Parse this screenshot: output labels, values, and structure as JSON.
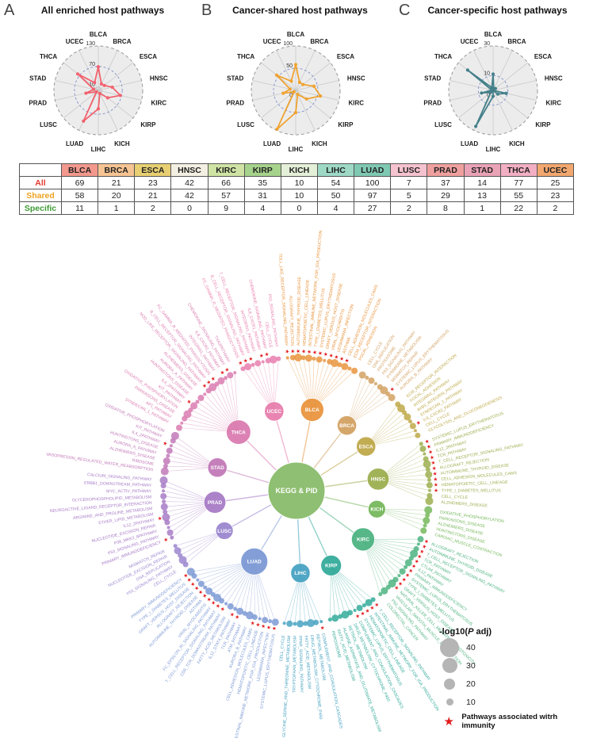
{
  "figure": {
    "panels": [
      {
        "letter": "A",
        "title": "All enriched host pathways",
        "color": "#f2626e",
        "ticks": [
          10,
          70,
          130
        ],
        "max": 130,
        "row": "All"
      },
      {
        "letter": "B",
        "title": "Cancer-shared host pathways",
        "color": "#f0a330",
        "ticks": [
          0,
          50,
          100
        ],
        "max": 100,
        "row": "Shared"
      },
      {
        "letter": "C",
        "title": "Cancer-specific host pathways",
        "color": "#44808a",
        "ticks": [
          0,
          10,
          30
        ],
        "max": 30,
        "row": "Specific"
      }
    ]
  },
  "chart_data": {
    "type": "radar",
    "categories": [
      "BLCA",
      "BRCA",
      "ESCA",
      "HNSC",
      "KIRC",
      "KIRP",
      "KICH",
      "LIHC",
      "LUAD",
      "LUSC",
      "PRAD",
      "STAD",
      "THCA",
      "UCEC"
    ],
    "series": [
      {
        "name": "All",
        "values": [
          69,
          21,
          23,
          42,
          66,
          35,
          10,
          54,
          100,
          7,
          37,
          14,
          77,
          25
        ],
        "ticks": [
          10,
          70,
          130
        ],
        "ylim": [
          0,
          130
        ],
        "color": "#f2626e",
        "title": "All enriched host pathways"
      },
      {
        "name": "Shared",
        "values": [
          58,
          20,
          21,
          42,
          57,
          31,
          10,
          50,
          97,
          5,
          29,
          13,
          55,
          23
        ],
        "ticks": [
          0,
          50,
          100
        ],
        "ylim": [
          0,
          100
        ],
        "color": "#f0a330",
        "title": "Cancer-shared host pathways"
      },
      {
        "name": "Specific",
        "values": [
          11,
          1,
          2,
          0,
          9,
          4,
          0,
          4,
          27,
          2,
          8,
          1,
          22,
          2
        ],
        "ticks": [
          0,
          10,
          30
        ],
        "ylim": [
          0,
          30
        ],
        "color": "#44808a",
        "title": "Cancer-specific host pathways"
      }
    ],
    "legend_position": "none",
    "grid": true
  },
  "table": {
    "columns": [
      "BLCA",
      "BRCA",
      "ESCA",
      "HNSC",
      "KIRC",
      "KIRP",
      "KICH",
      "LIHC",
      "LUAD",
      "LUSC",
      "PRAD",
      "STAD",
      "THCA",
      "UCEC"
    ],
    "header_colors": [
      "#f2988c",
      "#f6c493",
      "#e7cf72",
      "#f3efe2",
      "#cfe3a4",
      "#a6d38c",
      "#e4efd8",
      "#9ed9c6",
      "#7fc8b1",
      "#f5c2cf",
      "#efa09e",
      "#e9a2b6",
      "#f2afc4",
      "#f2a76f"
    ],
    "rows": [
      {
        "label": "All",
        "color": "#e23b2e",
        "values": [
          69,
          21,
          23,
          42,
          66,
          35,
          10,
          54,
          100,
          7,
          37,
          14,
          77,
          25
        ]
      },
      {
        "label": "Shared",
        "color": "#eda321",
        "values": [
          58,
          20,
          21,
          42,
          57,
          31,
          10,
          50,
          97,
          5,
          29,
          13,
          55,
          23
        ]
      },
      {
        "label": "Specific",
        "color": "#3f9b35",
        "values": [
          11,
          1,
          2,
          0,
          9,
          4,
          0,
          4,
          27,
          2,
          8,
          1,
          22,
          2
        ]
      }
    ]
  },
  "network": {
    "center": "KEGG & PID",
    "center_color": "#8fbf72",
    "star_color": "#e31a1c",
    "groups": [
      {
        "name": "BLCA",
        "color": "#e9953f",
        "pathways": [
          {
            "t": "TOLL_LIKE_RECEPTOR_SIGNALING_PATHWAY",
            "star": true
          },
          {
            "t": "ALLOGRAFT_REJECTION",
            "star": true
          },
          {
            "t": "AUTOIMMUNE_THYROID_DISEASE",
            "star": true
          },
          {
            "t": "HEMATOPOIETIC_CELL_LINEAGE",
            "star": true
          },
          {
            "t": "INTESTINAL_IMMUNE_NETWORK_FOR_IGA_PRODUCTION",
            "star": true
          },
          {
            "t": "TYPE_I_DIABETES_MELLITUS",
            "star": true
          },
          {
            "t": "SYSTEMIC_LUPUS_ERYTHEMATOSUS",
            "star": true
          },
          {
            "t": "GRAFT_VERSUS_HOST_DISEASE",
            "star": true
          },
          {
            "t": "VIRAL_MYOCARDITIS",
            "star": true
          },
          {
            "t": "LEISHMANIA_INFECTION",
            "star": true
          },
          {
            "t": "ASTHMA",
            "star": true
          },
          {
            "t": "CELL_ADHESION_MOLECULES_CAMS",
            "star": true
          },
          {
            "t": "ECM_RECEPTOR_INTERACTION",
            "star": false
          },
          {
            "t": "FOCAL_ADHESION",
            "star": false
          }
        ]
      },
      {
        "name": "BRCA",
        "color": "#d3a263",
        "pathways": [
          {
            "t": "CELL_CYCLE",
            "star": false
          },
          {
            "t": "DNA_REPLICATION",
            "star": false
          },
          {
            "t": "PROTEASOME",
            "star": false
          },
          {
            "t": "P53_SIGNALING_PATHWAY",
            "star": false
          },
          {
            "t": "PYRIMIDINE_METABOLISM",
            "star": false
          },
          {
            "t": "MISMATCH_REPAIR",
            "star": false
          },
          {
            "t": "SYSTEMIC_LUPUS_ERYTHEMATOSUS",
            "star": true
          },
          {
            "t": "AURORA_B_PATHWAY",
            "star": false
          }
        ]
      },
      {
        "name": "ESCA",
        "color": "#bfa94a",
        "pathways": [
          {
            "t": "ECM_RECEPTOR_INTERACTION",
            "star": false
          },
          {
            "t": "FOCAL_ADHESION",
            "star": false
          },
          {
            "t": "INTEGRIN1_PATHWAY",
            "star": false
          },
          {
            "t": "AVB3_INTEGRIN_PATHWAY",
            "star": false
          },
          {
            "t": "SYNDECAN_1_PATHWAY",
            "star": false
          },
          {
            "t": "IL8_CXCR2_PATHWAY",
            "star": true
          },
          {
            "t": "CELL_CYCLE",
            "star": false
          },
          {
            "t": "GLYCOLYSIS_AND_GLUCONEOGENESIS",
            "star": false
          }
        ]
      },
      {
        "name": "HNSC",
        "color": "#9daf50",
        "pathways": [
          {
            "t": "SYSTEMIC_LUPUS_ERYTHEMATOSUS",
            "star": true
          },
          {
            "t": "PRIMARY_IMMUNODEFICIENCY",
            "star": true
          },
          {
            "t": "IL12_2PATHWAY",
            "star": true
          },
          {
            "t": "TCR_PATHWAY",
            "star": true
          },
          {
            "t": "T_CELL_RECEPTOR_SIGNALING_PATHWAY",
            "star": true
          },
          {
            "t": "ALLOGRAFT_REJECTION",
            "star": true
          },
          {
            "t": "AUTOIMMUNE_THYROID_DISEASE",
            "star": true
          },
          {
            "t": "CELL_ADHESION_MOLECULES_CAMS",
            "star": true
          },
          {
            "t": "HEMATOPOIETIC_CELL_LINEAGE",
            "star": true
          },
          {
            "t": "TYPE_I_DIABETES_MELLITUS",
            "star": true
          },
          {
            "t": "CELL_CYCLE",
            "star": false
          },
          {
            "t": "ALZHEIMERS_DISEASE",
            "star": false
          }
        ]
      },
      {
        "name": "KICH",
        "color": "#77b85c",
        "pathways": [
          {
            "t": "OXIDATIVE_PHOSPHORYLATION",
            "star": false
          },
          {
            "t": "PARKINSONS_DISEASE",
            "star": false
          },
          {
            "t": "ALZHEIMERS_DISEASE",
            "star": false
          },
          {
            "t": "HUNTINGTONS_DISEASE",
            "star": false
          },
          {
            "t": "CARDIAC_MUSCLE_CONTRACTION",
            "star": false
          }
        ]
      },
      {
        "name": "KIRC",
        "color": "#4fb482",
        "pathways": [
          {
            "t": "ALLOGRAFT_REJECTION",
            "star": true
          },
          {
            "t": "AUTOIMMUNE_THYROID_DISEASE",
            "star": true
          },
          {
            "t": "T_CELL_RECEPTOR_SIGNALING_PATHWAY",
            "star": true
          },
          {
            "t": "TCR_PATHWAY",
            "star": true
          },
          {
            "t": "CTLA4_PATHWAY",
            "star": true
          },
          {
            "t": "IL12_PATHWAY",
            "star": true
          },
          {
            "t": "PRIMARY_IMMUNODEFICIENCY",
            "star": true
          },
          {
            "t": "SYSTEMIC_LUPUS_ERYTHEMATOSUS",
            "star": true
          },
          {
            "t": "TYPE_I_DIABETES_MELLITUS",
            "star": true
          },
          {
            "t": "GRAFT_VERSUS_HOST_DISEASE",
            "star": true
          },
          {
            "t": "NATURAL_KILLER_CELL_MEDIATED_CYTOTOXICITY",
            "star": true
          },
          {
            "t": "VASCULAR_SMOOTH_MUSCLE_CONTRACTION",
            "star": false
          },
          {
            "t": "P53_SIGNALING_PATHWAY",
            "star": false
          },
          {
            "t": "COLORECTAL_CANCER",
            "star": false
          }
        ]
      },
      {
        "name": "KIRP",
        "color": "#35ab9b",
        "pathways": [
          {
            "t": "T_CELL_RECEPTOR_SIGNALING_PATHWAY",
            "star": true
          },
          {
            "t": "INTESTINAL_IMMUNE_NETWORK_FOR_IGA_PRODUCTION",
            "star": true
          },
          {
            "t": "HEMATOPOIETIC_CELL_LINEAGE",
            "star": true
          },
          {
            "t": "SYSTEMIC_LUPUS_ERYTHEMATOSUS",
            "star": true
          },
          {
            "t": "COMPLEMENT_AND_COAGULATION_CASCADES",
            "star": true
          },
          {
            "t": "DRUG_METABOLISM_CYTOCHROME_P450",
            "star": false
          },
          {
            "t": "RETINOL_METABOLISM",
            "star": false
          },
          {
            "t": "ALANINE_ASPARTATE_AND_GLUTAMATE_METABOLISM",
            "star": false
          },
          {
            "t": "FATTY_ACID_METABOLISM",
            "star": false
          },
          {
            "t": "PEROXISOME",
            "star": false
          }
        ]
      },
      {
        "name": "LIHC",
        "color": "#48a3c2",
        "pathways": [
          {
            "t": "COMPLEMENT_AND_COAGULATION_CASCADES",
            "star": true
          },
          {
            "t": "RETINOL_METABOLISM",
            "star": false
          },
          {
            "t": "DRUG_METABOLISM_CYTOCHROME_P450",
            "star": false
          },
          {
            "t": "FATTY_ACID_METABOLISM",
            "star": false
          },
          {
            "t": "PPAR_SIGNALING_PATHWAY",
            "star": false
          },
          {
            "t": "TRYPTOPHAN_METABOLISM",
            "star": false
          },
          {
            "t": "GLYCINE_SERINE_AND_THREONINE_METABOLISM",
            "star": false
          },
          {
            "t": "CELL_CYCLE",
            "star": false
          }
        ]
      },
      {
        "name": "LUAD",
        "color": "#7e9ad5",
        "pathways": [
          {
            "t": "SYSTEMIC_LUPUS_ERYTHEMATOSUS",
            "star": true
          },
          {
            "t": "LEISHMANIA_INFECTION",
            "star": true
          },
          {
            "t": "INTESTINAL_IMMUNE_NETWORK_FOR_IGA_PRODUCTION",
            "star": true
          },
          {
            "t": "HEMATOPOIETIC_CELL_LINEAGE",
            "star": true
          },
          {
            "t": "CELL_ADHESION_MOLECULES_CAMS",
            "star": true
          },
          {
            "t": "AURORA_B_PATHWAY",
            "star": false
          },
          {
            "t": "ATM_PATHWAY",
            "star": false
          },
          {
            "t": "TCR_PATHWAY",
            "star": true
          },
          {
            "t": "IL12_STAT4_PATHWAY",
            "star": true
          },
          {
            "t": "FATTY_ACID_METABOLISM",
            "star": false
          },
          {
            "t": "CD8_TCR_DOWNSTREAM_PATHWAY",
            "star": true
          },
          {
            "t": "T_CELL_RECEPTOR_SIGNALING_PATHWAY",
            "star": true
          },
          {
            "t": "FC_EPSILON_RI_SIGNALING_PATHWAY",
            "star": true
          },
          {
            "t": "VIRAL_MYOCARDITIS",
            "star": true
          },
          {
            "t": "ASTHMA",
            "star": true
          },
          {
            "t": "AUTOIMMUNE_THYROID_DISEASE",
            "star": true
          },
          {
            "t": "ALLOGRAFT_REJECTION",
            "star": true
          },
          {
            "t": "GRAFT_VERSUS_HOST_DISEASE",
            "star": true
          },
          {
            "t": "TYPE_I_DIABETES_MELLITUS",
            "star": true
          },
          {
            "t": "PRIMARY_IMMUNODEFICIENCY",
            "star": true
          }
        ]
      },
      {
        "name": "LUSC",
        "color": "#9b87cf",
        "pathways": [
          {
            "t": "CELL_CYCLE",
            "star": false
          },
          {
            "t": "P53_SIGNALING_PATHWAY",
            "star": false
          },
          {
            "t": "DNA_REPLICATION",
            "star": false
          },
          {
            "t": "NUCLEOTIDE_EXCISION_REPAIR",
            "star": false
          },
          {
            "t": "MISMATCH_REPAIR",
            "star": false
          }
        ]
      },
      {
        "name": "PRAD",
        "color": "#a87cc7",
        "pathways": [
          {
            "t": "PRIMARY_IMMUNODEFICIENCY",
            "star": true
          },
          {
            "t": "P53_SIGNALING_PATHWAY",
            "star": false
          },
          {
            "t": "P38_MKK3_6PATHWAY",
            "star": false
          },
          {
            "t": "NUCLEOTIDE_EXCISION_REPAIR",
            "star": false
          },
          {
            "t": "IL12_2PATHWAY",
            "star": true
          },
          {
            "t": "ETHER_LIPID_METABOLISM",
            "star": false
          },
          {
            "t": "ARGININE_AND_PROLINE_METABOLISM",
            "star": false
          },
          {
            "t": "NEUROACTIVE_LIGAND_RECEPTOR_INTERACTION",
            "star": false
          },
          {
            "t": "GLYCEROPHOSPHOLIPID_METABOLISM",
            "star": false
          },
          {
            "t": "MYC_ACTIV_PATHWAY",
            "star": false
          },
          {
            "t": "ERBB1_DOWNSTREAM_PATHWAY",
            "star": false
          },
          {
            "t": "CALCIUM_SIGNALING_PATHWAY",
            "star": false
          }
        ]
      },
      {
        "name": "STAD",
        "color": "#c27ab8",
        "pathways": [
          {
            "t": "VASOPRESSIN_REGULATED_WATER_REABSORPTION",
            "star": false
          },
          {
            "t": "RIBOSOME",
            "star": false
          },
          {
            "t": "ALZHEIMERS_DISEASE",
            "star": false
          },
          {
            "t": "AURORA_A_PATHWAY",
            "star": false
          },
          {
            "t": "HUNTINGTONS_DISEASE",
            "star": false
          },
          {
            "t": "IL4_2PATHWAY",
            "star": true
          },
          {
            "t": "KIT_PATHWAY",
            "star": false
          },
          {
            "t": "OXIDATIVE_PHOSPHORYLATION",
            "star": false
          }
        ]
      },
      {
        "name": "THCA",
        "color": "#db7cb0",
        "pathways": [
          {
            "t": "SYNDECAN_1_PATHWAY",
            "star": false
          },
          {
            "t": "AP1_PATHWAY",
            "star": false
          },
          {
            "t": "PARKINSONS_DISEASE",
            "star": false
          },
          {
            "t": "OXIDATIVE_PHOSPHORYLATION",
            "star": false
          },
          {
            "t": "KIT_PATHWAY",
            "star": false
          },
          {
            "t": "IL4_2PATHWAY",
            "star": true
          },
          {
            "t": "HUNTINGTONS_DISEASE",
            "star": false
          },
          {
            "t": "AURORA_A_PATHWAY",
            "star": false
          },
          {
            "t": "ALZHEIMERS_DISEASE",
            "star": false
          },
          {
            "t": "NOD_LIKE_RECEPTOR_SIGNALING_PATHWAY",
            "star": true
          },
          {
            "t": "B_CELL_RECEPTOR_SIGNALING_PATHWAY",
            "star": true
          },
          {
            "t": "FC_GAMMA_R_MEDIATED_PHAGOCYTOSIS",
            "star": true
          },
          {
            "t": "INTEGRIN1_PATHWAY",
            "star": false
          },
          {
            "t": "IL8_CXCR2_PATHWAY",
            "star": true
          },
          {
            "t": "CHEMOKINE_SIGNALING_PATHWAY",
            "star": true
          },
          {
            "t": "TXA2PATHWAY",
            "star": false
          }
        ]
      },
      {
        "name": "UCEC",
        "color": "#e87fae",
        "pathways": [
          {
            "t": "FC_GAMMA_R_MEDIATED_PHAGOCYTOSIS",
            "star": true
          },
          {
            "t": "B_CELL_RECEPTOR_SIGNALING_PATHWAY",
            "star": true
          },
          {
            "t": "T_CELL_RECEPTOR_SIGNALING_PATHWAY",
            "star": true
          },
          {
            "t": "INTEGRIN1_PATHWAY",
            "star": false
          },
          {
            "t": "IL8_CXCR1_PATHWAY",
            "star": true
          },
          {
            "t": "CHEMOKINE_SIGNALING_PATHWAY",
            "star": true
          },
          {
            "t": "CELL_CYCLE",
            "star": false
          },
          {
            "t": "P53_SIGNALING_PATHWAY",
            "star": false
          }
        ]
      }
    ]
  },
  "legend": {
    "title_pre": "-log10(",
    "title_p": "P",
    "title_post": " adj)",
    "sizes": [
      40,
      30,
      20,
      10
    ],
    "star_label": "Pathways associated witrh immunity"
  }
}
